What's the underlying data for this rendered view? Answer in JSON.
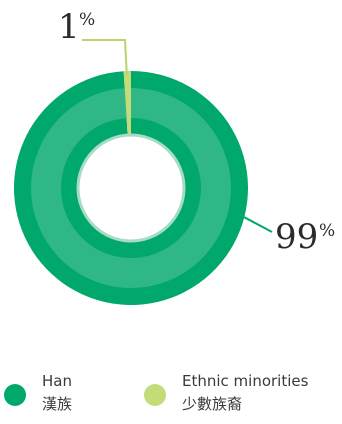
{
  "chart_data": {
    "type": "pie",
    "style": "donut",
    "title": "",
    "categories": [
      "Han 漢族",
      "Ethnic minorities 少數族裔"
    ],
    "values": [
      99,
      1
    ],
    "unit": "%",
    "data_labels": [
      {
        "number": "99",
        "sign": "%"
      },
      {
        "number": "1",
        "sign": "%"
      }
    ],
    "legend": [
      {
        "en": "Han",
        "zh": "漢族",
        "color": "#00a86b"
      },
      {
        "en": "Ethnic minorities",
        "zh": "少數族裔",
        "color": "#c3dc78"
      }
    ],
    "legend_position": "bottom"
  },
  "colors": {
    "han": "#00a86b",
    "han_inner_ring": "#34b88a",
    "minorities": "#c3dc78",
    "center_border": "#a6dcc6",
    "leader_lines": "#00a86b",
    "minor_leader": "#b8d46a"
  }
}
